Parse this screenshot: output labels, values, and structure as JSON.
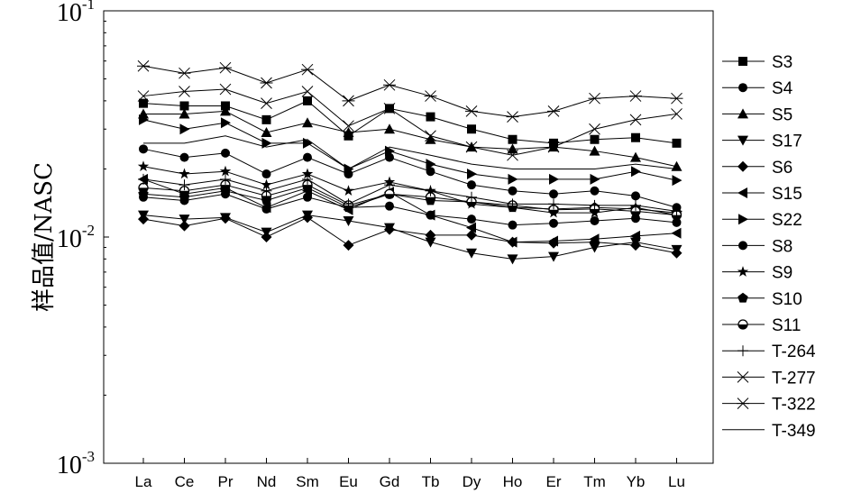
{
  "chart_data": {
    "type": "line",
    "yscale": "log",
    "ylim": [
      0.001,
      0.1
    ],
    "ylabel": "样品值/NASC",
    "xlabel": "",
    "title": "",
    "y_tick_labels": [
      {
        "value": 0.1,
        "base": "10",
        "exp": "-1"
      },
      {
        "value": 0.01,
        "base": "10",
        "exp": "-2"
      },
      {
        "value": 0.001,
        "base": "10",
        "exp": "-3"
      }
    ],
    "categories": [
      "La",
      "Ce",
      "Pr",
      "Nd",
      "Sm",
      "Eu",
      "Gd",
      "Tb",
      "Dy",
      "Ho",
      "Er",
      "Tm",
      "Yb",
      "Lu"
    ],
    "legend_position": "right",
    "series": [
      {
        "name": "S3",
        "marker": "square",
        "values": [
          0.039,
          0.038,
          0.038,
          0.033,
          0.04,
          0.028,
          0.037,
          0.034,
          0.03,
          0.027,
          0.026,
          0.027,
          0.0275,
          0.026
        ]
      },
      {
        "name": "S4",
        "marker": "circle",
        "values": [
          0.0245,
          0.0225,
          0.0235,
          0.019,
          0.0225,
          0.019,
          0.0225,
          0.0195,
          0.017,
          0.016,
          0.0155,
          0.016,
          0.0152,
          0.0135
        ]
      },
      {
        "name": "S5",
        "marker": "triangle-up",
        "values": [
          0.035,
          0.035,
          0.036,
          0.029,
          0.032,
          0.029,
          0.03,
          0.027,
          0.025,
          0.0245,
          0.025,
          0.024,
          0.0225,
          0.0205
        ]
      },
      {
        "name": "S17",
        "marker": "triangle-down",
        "values": [
          0.0125,
          0.012,
          0.0122,
          0.0105,
          0.0125,
          0.0118,
          0.011,
          0.0095,
          0.0085,
          0.008,
          0.0082,
          0.009,
          0.0095,
          0.0088
        ]
      },
      {
        "name": "S6",
        "marker": "diamond",
        "values": [
          0.012,
          0.0112,
          0.0121,
          0.01,
          0.0122,
          0.0092,
          0.0108,
          0.0102,
          0.0102,
          0.0095,
          0.0094,
          0.0095,
          0.0092,
          0.0085
        ]
      },
      {
        "name": "S15",
        "marker": "triangle-left",
        "values": [
          0.018,
          0.0155,
          0.0165,
          0.0135,
          0.016,
          0.0132,
          0.0158,
          0.0125,
          0.011,
          0.0095,
          0.0096,
          0.0098,
          0.0101,
          0.0104
        ]
      },
      {
        "name": "S22",
        "marker": "triangle-right",
        "values": [
          0.033,
          0.03,
          0.032,
          0.026,
          0.026,
          0.02,
          0.024,
          0.021,
          0.019,
          0.018,
          0.018,
          0.018,
          0.0195,
          0.0178
        ]
      },
      {
        "name": "S8",
        "marker": "circle",
        "values": [
          0.015,
          0.0145,
          0.0155,
          0.0133,
          0.015,
          0.0135,
          0.0137,
          0.0125,
          0.012,
          0.0113,
          0.0115,
          0.0118,
          0.0121,
          0.0116
        ]
      },
      {
        "name": "S9",
        "marker": "star",
        "values": [
          0.0205,
          0.019,
          0.0195,
          0.017,
          0.019,
          0.016,
          0.0175,
          0.016,
          0.014,
          0.0135,
          0.0128,
          0.0128,
          0.0135,
          0.0125
        ]
      },
      {
        "name": "S10",
        "marker": "pentagon",
        "values": [
          0.0155,
          0.015,
          0.016,
          0.0145,
          0.0165,
          0.0135,
          0.0155,
          0.0145,
          0.0143,
          0.0135,
          0.0133,
          0.0135,
          0.0133,
          0.0128
        ]
      },
      {
        "name": "S11",
        "marker": "circle-half",
        "values": [
          0.0165,
          0.016,
          0.017,
          0.0152,
          0.017,
          0.0138,
          0.0155,
          0.015,
          0.0143,
          0.0138,
          0.0132,
          0.0133,
          0.013,
          0.0125
        ]
      },
      {
        "name": "T-264",
        "marker": "plus",
        "values": [
          0.018,
          0.017,
          0.018,
          0.016,
          0.018,
          0.014,
          0.017,
          0.016,
          0.015,
          0.014,
          0.014,
          0.0138,
          0.0138,
          0.013
        ]
      },
      {
        "name": "T-277",
        "marker": "x",
        "values": [
          0.042,
          0.044,
          0.045,
          0.039,
          0.044,
          0.031,
          0.037,
          0.028,
          0.025,
          0.023,
          0.025,
          0.03,
          0.033,
          0.035
        ]
      },
      {
        "name": "T-322",
        "marker": "asterisk",
        "values": [
          0.057,
          0.053,
          0.056,
          0.048,
          0.055,
          0.04,
          0.047,
          0.042,
          0.036,
          0.034,
          0.036,
          0.041,
          0.042,
          0.041
        ]
      },
      {
        "name": "T-349",
        "marker": "none",
        "values": [
          0.026,
          0.026,
          0.028,
          0.025,
          0.027,
          0.02,
          0.025,
          0.023,
          0.021,
          0.02,
          0.02,
          0.02,
          0.021,
          0.02
        ]
      }
    ]
  }
}
